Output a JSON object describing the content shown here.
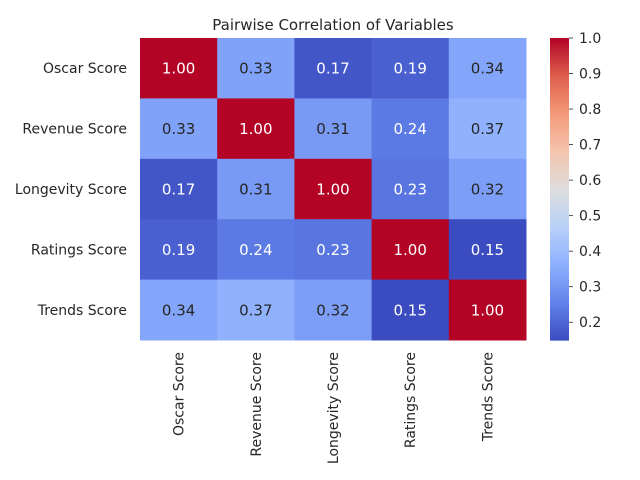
{
  "chart_data": {
    "type": "heatmap",
    "title": "Pairwise Correlation of Variables",
    "xlabel": "",
    "ylabel": "",
    "x_labels": [
      "Oscar Score",
      "Revenue Score",
      "Longevity Score",
      "Ratings Score",
      "Trends Score"
    ],
    "y_labels": [
      "Oscar Score",
      "Revenue Score",
      "Longevity Score",
      "Ratings Score",
      "Trends Score"
    ],
    "values": [
      [
        1.0,
        0.33,
        0.17,
        0.19,
        0.34
      ],
      [
        0.33,
        1.0,
        0.31,
        0.24,
        0.37
      ],
      [
        0.17,
        0.31,
        1.0,
        0.23,
        0.32
      ],
      [
        0.19,
        0.24,
        0.23,
        1.0,
        0.15
      ],
      [
        0.34,
        0.37,
        0.32,
        0.15,
        1.0
      ]
    ],
    "annotation_format": "0.00",
    "colormap": "coolwarm",
    "colorbar": {
      "vmin": 0.15,
      "vmax": 1.0,
      "ticks": [
        0.2,
        0.3,
        0.4,
        0.5,
        0.6,
        0.7,
        0.8,
        0.9,
        1.0
      ],
      "tick_labels": [
        "0.2",
        "0.3",
        "0.4",
        "0.5",
        "0.6",
        "0.7",
        "0.8",
        "0.9",
        "1.0"
      ],
      "placement": "right"
    },
    "grid": false
  }
}
